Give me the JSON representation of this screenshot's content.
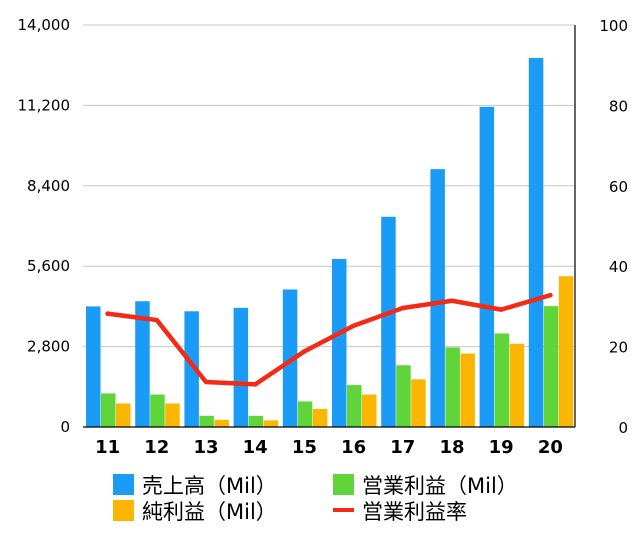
{
  "chart_data": {
    "type": "bar",
    "categories": [
      "11",
      "12",
      "13",
      "14",
      "15",
      "16",
      "17",
      "18",
      "19",
      "20"
    ],
    "y_left": {
      "lim": [
        0,
        14000
      ],
      "ticks": [
        0,
        2800,
        5600,
        8400,
        11200,
        14000
      ],
      "tick_labels": [
        "0",
        "2,800",
        "5,600",
        "8,400",
        "11,200",
        "14,000"
      ]
    },
    "y_right": {
      "lim": [
        0,
        100
      ],
      "ticks": [
        0,
        20,
        40,
        60,
        80,
        100
      ],
      "tick_labels": [
        "0",
        "20",
        "40",
        "60",
        "80",
        "100"
      ]
    },
    "grid": true,
    "series": [
      {
        "name": "売上高（Mil）",
        "kind": "bar",
        "axis": "left",
        "color": "#1a9bf5",
        "values": [
          4200,
          4380,
          4030,
          4150,
          4790,
          5850,
          7320,
          8980,
          11150,
          12850
        ]
      },
      {
        "name": "営業利益（Mil）",
        "kind": "bar",
        "axis": "left",
        "color": "#5fd53a",
        "values": [
          1170,
          1130,
          390,
          390,
          890,
          1460,
          2150,
          2770,
          3260,
          4210
        ]
      },
      {
        "name": "純利益（Mil）",
        "kind": "bar",
        "axis": "left",
        "color": "#fbb602",
        "values": [
          820,
          820,
          250,
          230,
          630,
          1130,
          1660,
          2560,
          2900,
          5250
        ]
      },
      {
        "name": "営業利益率",
        "kind": "line",
        "axis": "right",
        "color": "#f42a16",
        "values": [
          28.2,
          26.6,
          11.2,
          10.6,
          18.8,
          25.2,
          29.6,
          31.4,
          29.2,
          32.8
        ]
      }
    ],
    "legend": {
      "placement": "bottom",
      "entries": [
        "売上高（Mil）",
        "営業利益（Mil）",
        "純利益（Mil）",
        "営業利益率"
      ]
    }
  }
}
